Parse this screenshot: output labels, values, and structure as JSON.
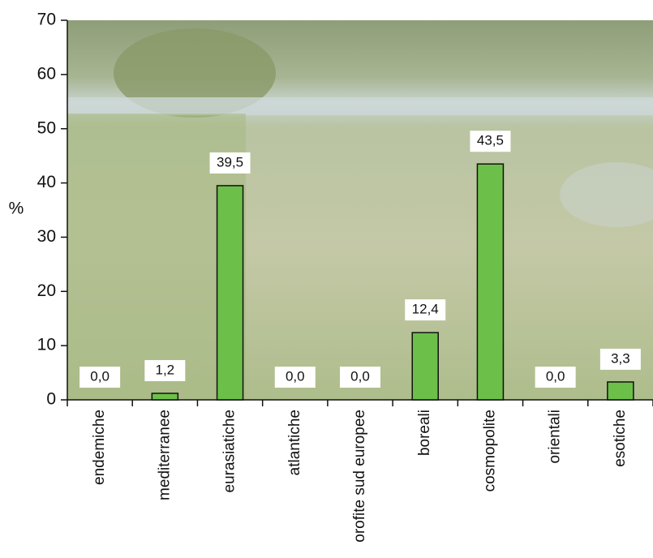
{
  "chart_data": {
    "type": "bar",
    "y_label": "%",
    "categories": [
      "endemiche",
      "mediterranee",
      "eurasiatiche",
      "atlantiche",
      "orofite sud europee",
      "boreali",
      "cosmopolite",
      "orientali",
      "esotiche"
    ],
    "values": [
      0.0,
      1.2,
      39.5,
      0.0,
      0.0,
      12.4,
      43.5,
      0.0,
      3.3
    ],
    "value_labels": [
      "0,0",
      "1,2",
      "39,5",
      "0,0",
      "0,0",
      "12,4",
      "43,5",
      "0,0",
      "3,3"
    ],
    "color": "#6cc04a",
    "ylim": [
      0,
      70
    ],
    "yticks": [
      0,
      10,
      20,
      30,
      40,
      50,
      60,
      70
    ]
  }
}
